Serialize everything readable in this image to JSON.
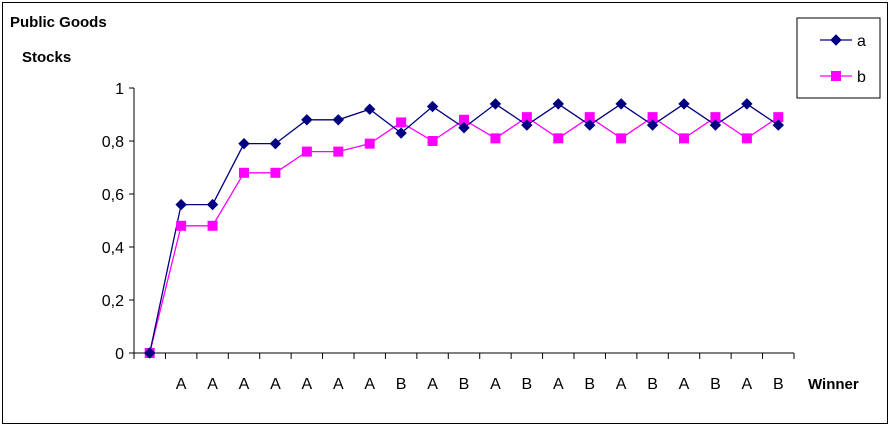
{
  "chart_data": {
    "type": "line",
    "title": "",
    "ylabel_line1": "Public Goods",
    "ylabel_line2": "Stocks",
    "xlabel": "Winner",
    "ylim": [
      0,
      1
    ],
    "yticks": [
      {
        "value": 0,
        "label": "0"
      },
      {
        "value": 0.2,
        "label": "0,2"
      },
      {
        "value": 0.4,
        "label": "0,4"
      },
      {
        "value": 0.6,
        "label": "0,6"
      },
      {
        "value": 0.8,
        "label": "0,8"
      },
      {
        "value": 1,
        "label": "1"
      }
    ],
    "categories": [
      "",
      "A",
      "A",
      "A",
      "A",
      "A",
      "A",
      "A",
      "B",
      "A",
      "B",
      "A",
      "B",
      "A",
      "B",
      "A",
      "B",
      "A",
      "B",
      "A",
      "B"
    ],
    "series": [
      {
        "name": "a",
        "color": "#000080",
        "marker": "diamond",
        "values": [
          0,
          0.56,
          0.56,
          0.79,
          0.79,
          0.88,
          0.88,
          0.92,
          0.83,
          0.93,
          0.85,
          0.94,
          0.86,
          0.94,
          0.86,
          0.94,
          0.86,
          0.94,
          0.86,
          0.94,
          0.86
        ]
      },
      {
        "name": "b",
        "color": "#ff00ff",
        "marker": "square",
        "values": [
          0,
          0.48,
          0.48,
          0.68,
          0.68,
          0.76,
          0.76,
          0.79,
          0.87,
          0.8,
          0.88,
          0.81,
          0.89,
          0.81,
          0.89,
          0.81,
          0.89,
          0.81,
          0.89,
          0.81,
          0.89
        ]
      }
    ],
    "legend_position": "top-right",
    "grid": false
  }
}
